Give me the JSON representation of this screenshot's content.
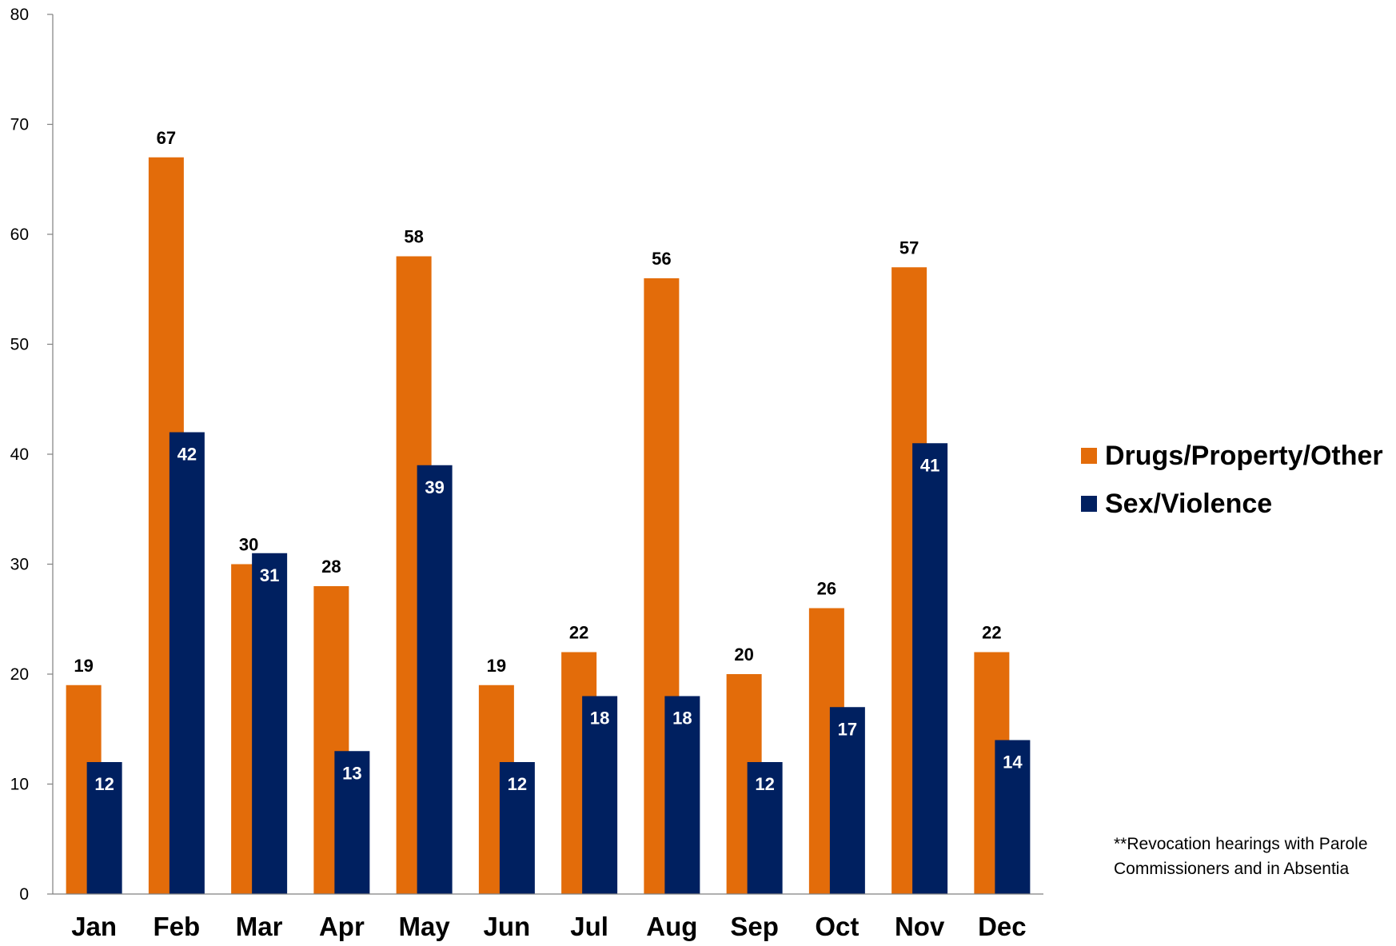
{
  "chart_data": {
    "type": "bar",
    "categories": [
      "Jan",
      "Feb",
      "Mar",
      "Apr",
      "May",
      "Jun",
      "Jul",
      "Aug",
      "Sep",
      "Oct",
      "Nov",
      "Dec"
    ],
    "series": [
      {
        "name": "Drugs/Property/Other",
        "color": "#E36C0A",
        "values": [
          19,
          67,
          30,
          28,
          58,
          19,
          22,
          56,
          20,
          26,
          57,
          22
        ]
      },
      {
        "name": "Sex/Violence",
        "color": "#002060",
        "values": [
          12,
          42,
          31,
          13,
          39,
          12,
          18,
          18,
          12,
          17,
          41,
          14
        ]
      }
    ],
    "ylim": [
      0,
      80
    ],
    "yticks": [
      0,
      10,
      20,
      30,
      40,
      50,
      60,
      70,
      80
    ],
    "title": "",
    "xlabel": "",
    "ylabel": "",
    "legend_position": "right",
    "grid": false,
    "data_labels": true
  },
  "note": "**Revocation hearings with Parole Commissioners and in Absentia"
}
